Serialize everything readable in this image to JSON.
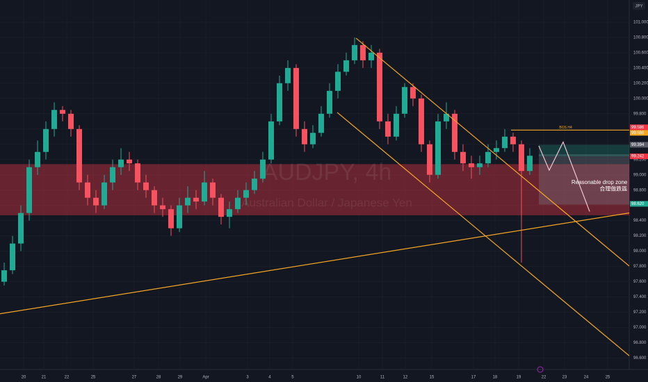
{
  "chart_data": {
    "type": "candlestick",
    "symbol": "JPY",
    "watermark": "AUDJPY, 4h",
    "watermark_subtitle": "Australian Dollar / Japanese Yen",
    "up_color": "#22ab94",
    "down_color": "#f7525f",
    "grid": true,
    "xlim": [
      -0.5,
      74.92
    ],
    "ylim": [
      96.45,
      101.29
    ],
    "xticks": [
      {
        "value": 2.33,
        "label": "20"
      },
      {
        "value": 4.75,
        "label": "21"
      },
      {
        "value": 7.5,
        "label": "22"
      },
      {
        "value": 10.67,
        "label": "25"
      },
      {
        "value": 15.58,
        "label": "27"
      },
      {
        "value": 18.5,
        "label": "28"
      },
      {
        "value": 21.08,
        "label": "29"
      },
      {
        "value": 24.17,
        "label": "Apr"
      },
      {
        "value": 29.17,
        "label": "3"
      },
      {
        "value": 31.83,
        "label": "4"
      },
      {
        "value": 34.58,
        "label": "5"
      },
      {
        "value": 42.5,
        "label": "10"
      },
      {
        "value": 45.33,
        "label": "11"
      },
      {
        "value": 48.08,
        "label": "12"
      },
      {
        "value": 51.25,
        "label": "15"
      },
      {
        "value": 56.25,
        "label": "17"
      },
      {
        "value": 58.83,
        "label": "18"
      },
      {
        "value": 61.67,
        "label": "19"
      },
      {
        "value": 64.67,
        "label": "22"
      },
      {
        "value": 67.17,
        "label": "23"
      },
      {
        "value": 69.75,
        "label": "24"
      },
      {
        "value": 72.33,
        "label": "25"
      }
    ],
    "yticks": [
      {
        "value": 96.6,
        "label": "96.600"
      },
      {
        "value": 96.8,
        "label": "96.800"
      },
      {
        "value": 97,
        "label": "97.000"
      },
      {
        "value": 97.2,
        "label": "97.200"
      },
      {
        "value": 97.4,
        "label": "97.400"
      },
      {
        "value": 97.6,
        "label": "97.600"
      },
      {
        "value": 97.8,
        "label": "97.800"
      },
      {
        "value": 98,
        "label": "98.000"
      },
      {
        "value": 98.2,
        "label": "98.200"
      },
      {
        "value": 98.4,
        "label": "98.400"
      },
      {
        "value": 98.6,
        "label": "98.600"
      },
      {
        "value": 98.8,
        "label": "98.800"
      },
      {
        "value": 99,
        "label": "99.000"
      },
      {
        "value": 99.2,
        "label": "99.200"
      },
      {
        "value": 99.4,
        "label": "99.400"
      },
      {
        "value": 99.6,
        "label": "99.600"
      },
      {
        "value": 99.8,
        "label": "99.800"
      },
      {
        "value": 100,
        "label": "100.000"
      },
      {
        "value": 100.2,
        "label": "100.200"
      },
      {
        "value": 100.4,
        "label": "100.400"
      },
      {
        "value": 100.6,
        "label": "100.600"
      },
      {
        "value": 100.8,
        "label": "100.800"
      },
      {
        "value": 101,
        "label": "101.000"
      }
    ],
    "candles": [
      [
        97.6,
        97.85,
        97.55,
        97.75
      ],
      [
        97.75,
        98.2,
        97.7,
        98.1
      ],
      [
        98.1,
        98.6,
        98.0,
        98.5
      ],
      [
        98.5,
        99.2,
        98.4,
        99.1
      ],
      [
        99.1,
        99.45,
        99.0,
        99.3
      ],
      [
        99.3,
        99.7,
        99.2,
        99.6
      ],
      [
        99.6,
        99.95,
        99.5,
        99.85
      ],
      [
        99.85,
        99.9,
        99.7,
        99.8
      ],
      [
        99.8,
        99.85,
        99.5,
        99.6
      ],
      [
        99.6,
        99.65,
        98.8,
        98.9
      ],
      [
        98.9,
        99.0,
        98.6,
        98.7
      ],
      [
        98.7,
        98.8,
        98.5,
        98.6
      ],
      [
        98.6,
        99.0,
        98.55,
        98.9
      ],
      [
        98.9,
        99.2,
        98.8,
        99.1
      ],
      [
        99.1,
        99.35,
        99.0,
        99.2
      ],
      [
        99.2,
        99.3,
        99.05,
        99.15
      ],
      [
        99.15,
        99.2,
        98.8,
        98.9
      ],
      [
        98.9,
        99.0,
        98.7,
        98.8
      ],
      [
        98.8,
        98.85,
        98.5,
        98.6
      ],
      [
        98.6,
        98.7,
        98.45,
        98.55
      ],
      [
        98.55,
        98.6,
        98.2,
        98.3
      ],
      [
        98.3,
        98.7,
        98.25,
        98.6
      ],
      [
        98.6,
        98.85,
        98.5,
        98.7
      ],
      [
        98.7,
        98.8,
        98.55,
        98.65
      ],
      [
        98.65,
        99.05,
        98.6,
        98.9
      ],
      [
        98.9,
        98.95,
        98.6,
        98.7
      ],
      [
        98.7,
        98.75,
        98.35,
        98.45
      ],
      [
        98.45,
        98.65,
        98.3,
        98.55
      ],
      [
        98.55,
        98.8,
        98.5,
        98.7
      ],
      [
        98.7,
        98.9,
        98.6,
        98.8
      ],
      [
        98.8,
        99.05,
        98.75,
        98.95
      ],
      [
        98.95,
        99.3,
        98.9,
        99.2
      ],
      [
        99.2,
        99.8,
        99.15,
        99.7
      ],
      [
        99.7,
        100.3,
        99.65,
        100.2
      ],
      [
        100.2,
        100.5,
        100.1,
        100.4
      ],
      [
        100.4,
        100.45,
        99.5,
        99.6
      ],
      [
        99.6,
        99.7,
        99.3,
        99.4
      ],
      [
        99.4,
        99.65,
        99.35,
        99.55
      ],
      [
        99.55,
        99.9,
        99.5,
        99.8
      ],
      [
        99.8,
        100.2,
        99.75,
        100.1
      ],
      [
        100.1,
        100.45,
        100.0,
        100.35
      ],
      [
        100.35,
        100.6,
        100.3,
        100.5
      ],
      [
        100.5,
        100.8,
        100.45,
        100.7
      ],
      [
        100.7,
        100.75,
        100.4,
        100.5
      ],
      [
        100.5,
        100.7,
        100.4,
        100.6
      ],
      [
        100.6,
        100.65,
        99.6,
        99.7
      ],
      [
        99.7,
        99.8,
        99.4,
        99.5
      ],
      [
        99.5,
        99.9,
        99.45,
        99.8
      ],
      [
        99.8,
        100.2,
        99.75,
        100.15
      ],
      [
        100.15,
        100.2,
        99.9,
        100.0
      ],
      [
        100.0,
        100.05,
        99.3,
        99.4
      ],
      [
        99.4,
        99.45,
        98.9,
        99.0
      ],
      [
        99.0,
        99.8,
        98.95,
        99.7
      ],
      [
        99.7,
        99.95,
        99.6,
        99.8
      ],
      [
        99.8,
        99.85,
        99.2,
        99.3
      ],
      [
        99.3,
        99.4,
        99.05,
        99.15
      ],
      [
        99.15,
        99.25,
        98.95,
        99.1
      ],
      [
        99.1,
        99.25,
        99.0,
        99.15
      ],
      [
        99.15,
        99.4,
        99.1,
        99.3
      ],
      [
        99.3,
        99.45,
        99.2,
        99.35
      ],
      [
        99.35,
        99.6,
        99.3,
        99.5
      ],
      [
        99.5,
        99.55,
        99.3,
        99.4
      ],
      [
        99.4,
        99.45,
        97.85,
        99.05
      ],
      [
        99.05,
        99.35,
        99.0,
        99.25
      ]
    ],
    "zones": [
      {
        "y": [
          98.47,
          99.14
        ],
        "color": "rgba(242,54,69,0.38)"
      }
    ],
    "boxes": [
      {
        "x": [
          64.08,
          74.92
        ],
        "y": [
          98.61,
          99.27
        ],
        "color": "rgba(120,123,134,0.35)"
      },
      {
        "x": [
          64.08,
          74.92
        ],
        "y": [
          99.242,
          99.394
        ],
        "color": "rgba(34,171,148,0.25)"
      }
    ],
    "lines": [
      {
        "points": [
          [
            -0.5,
            97.18
          ],
          [
            77.17,
            98.54
          ]
        ],
        "color": "#f5a623"
      },
      {
        "points": [
          [
            42.17,
            100.79
          ],
          [
            74.92,
            97.805
          ]
        ],
        "color": "#f5a623"
      },
      {
        "points": [
          [
            39.92,
            99.817
          ],
          [
            74.92,
            96.63
          ]
        ],
        "color": "#f5a623"
      },
      {
        "points": [
          [
            60.75,
            99.586
          ],
          [
            74.92,
            99.586
          ]
        ],
        "color": "#f5a623"
      },
      {
        "points": [
          [
            64.08,
            99.38
          ],
          [
            65.33,
            99.06
          ],
          [
            67,
            99.43
          ],
          [
            70.17,
            98.52
          ]
        ],
        "color": "#f0c8d0"
      }
    ],
    "annotations": [
      {
        "text": "BOS H4",
        "x": 67.3,
        "y": 99.62,
        "color": "#f5a623"
      },
      {
        "text": "Reasonable drop zone",
        "x": 74.7,
        "y": 98.9,
        "color": "#ffffff"
      },
      {
        "text": "合理做跌區",
        "x": 74.7,
        "y": 98.81,
        "color": "#ffffff"
      }
    ],
    "price_labels": [
      {
        "value": 99.586,
        "label": "99.586",
        "color": "#f23645"
      },
      {
        "value": 99.586,
        "label": "99.586",
        "color": "#f5a623"
      },
      {
        "value": 99.394,
        "label": "99.394",
        "color": "#5d606b"
      },
      {
        "value": 99.242,
        "label": "99.242",
        "color": "#f23645"
      },
      {
        "value": 98.62,
        "label": "98.620",
        "color": "#22ab94"
      }
    ]
  }
}
